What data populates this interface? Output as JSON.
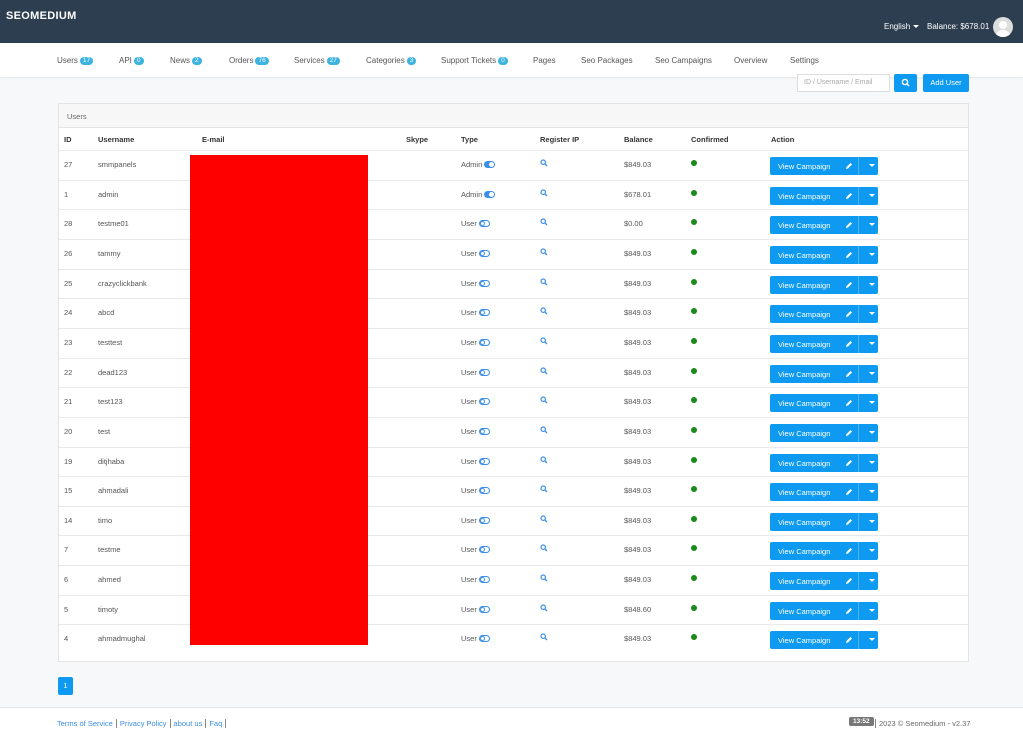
{
  "header": {
    "brand": "SEOMEDIUM",
    "language": "English",
    "balance": "Balance: $678.01"
  },
  "nav": [
    {
      "label": "Users",
      "badge": 17
    },
    {
      "label": "API",
      "badge": 0
    },
    {
      "label": "News",
      "badge": 2
    },
    {
      "label": "Orders",
      "badge": 76
    },
    {
      "label": "Services",
      "badge": 27
    },
    {
      "label": "Categories",
      "badge": 3
    },
    {
      "label": "Support Tickets",
      "badge": 0
    },
    {
      "label": "Pages"
    },
    {
      "label": "Seo Packages"
    },
    {
      "label": "Seo Campaigns"
    },
    {
      "label": "Overview"
    },
    {
      "label": "Settings"
    }
  ],
  "search": {
    "placeholder": "ID / Username / Email",
    "add_button": "Add User"
  },
  "table": {
    "title": "Users",
    "columns": [
      "ID",
      "Username",
      "E-mail",
      "Skype",
      "Type",
      "Register IP",
      "Balance",
      "Confirmed",
      "Action"
    ],
    "action_label": "View Campaign",
    "rows": [
      {
        "id": 27,
        "username": "smmpanels",
        "type": "Admin",
        "balance": "$849.03"
      },
      {
        "id": 1,
        "username": "admin",
        "type": "Admin",
        "balance": "$678.01"
      },
      {
        "id": 28,
        "username": "testme01",
        "type": "User",
        "balance": "$0.00"
      },
      {
        "id": 26,
        "username": "tammy",
        "type": "User",
        "balance": "$849.03"
      },
      {
        "id": 25,
        "username": "crazyclickbank",
        "type": "User",
        "balance": "$849.03"
      },
      {
        "id": 24,
        "username": "abcd",
        "type": "User",
        "balance": "$849.03"
      },
      {
        "id": 23,
        "username": "testtest",
        "type": "User",
        "balance": "$849.03"
      },
      {
        "id": 22,
        "username": "dead123",
        "type": "User",
        "balance": "$849.03"
      },
      {
        "id": 21,
        "username": "test123",
        "type": "User",
        "balance": "$849.03"
      },
      {
        "id": 20,
        "username": "test",
        "type": "User",
        "balance": "$849.03"
      },
      {
        "id": 19,
        "username": "ditjhaba",
        "type": "User",
        "balance": "$849.03"
      },
      {
        "id": 15,
        "username": "ahmadali",
        "type": "User",
        "balance": "$849.03"
      },
      {
        "id": 14,
        "username": "timo",
        "type": "User",
        "balance": "$849.03"
      },
      {
        "id": 7,
        "username": "testme",
        "type": "User",
        "balance": "$849.03"
      },
      {
        "id": 6,
        "username": "ahmed",
        "type": "User",
        "balance": "$849.03"
      },
      {
        "id": 5,
        "username": "timoty",
        "type": "User",
        "balance": "$848.60"
      },
      {
        "id": 4,
        "username": "ahmadmughal",
        "type": "User",
        "balance": "$849.03"
      }
    ]
  },
  "pagination": {
    "current": 1
  },
  "footer": {
    "links": [
      "Terms of Service",
      "Privacy Policy",
      "about us",
      "Faq"
    ],
    "time": "13:52",
    "copyright": "2023 © Seomedium - v2.37"
  }
}
